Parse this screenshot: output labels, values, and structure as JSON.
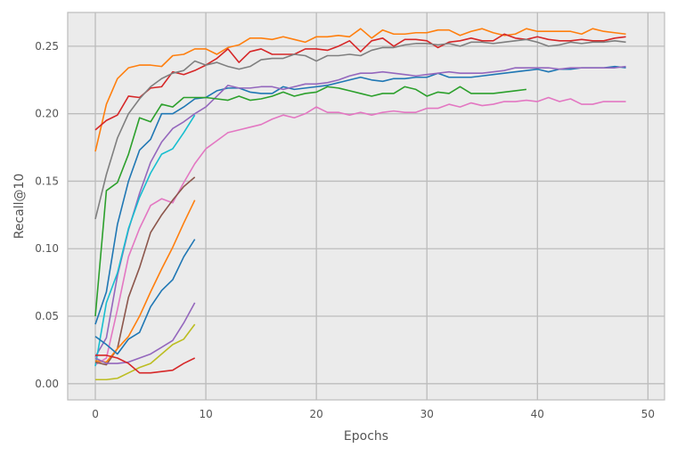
{
  "chart_data": {
    "type": "line",
    "title": "",
    "xlabel": "Epochs",
    "ylabel": "Recall@10",
    "xlim": [
      -2.5,
      51.5
    ],
    "ylim": [
      -0.012,
      0.275
    ],
    "xticks": [
      0,
      10,
      20,
      30,
      40,
      50
    ],
    "yticks": [
      0.0,
      0.05,
      0.1,
      0.15,
      0.2,
      0.25
    ],
    "xtick_labels": [
      "0",
      "10",
      "20",
      "30",
      "40",
      "50"
    ],
    "ytick_labels": [
      "0.00",
      "0.05",
      "0.10",
      "0.15",
      "0.20",
      "0.25"
    ],
    "grid": true,
    "background": "#ebebeb",
    "grid_color": "#bcbcbc",
    "series": [
      {
        "color": "#ff7f0e",
        "x_start": 0,
        "values": [
          0.172,
          0.207,
          0.226,
          0.234,
          0.236,
          0.236,
          0.235,
          0.243,
          0.244,
          0.248,
          0.248,
          0.244,
          0.249,
          0.251,
          0.256,
          0.256,
          0.255,
          0.257,
          0.255,
          0.253,
          0.257,
          0.257,
          0.258,
          0.257,
          0.263,
          0.256,
          0.262,
          0.259,
          0.259,
          0.26,
          0.26,
          0.262,
          0.262,
          0.258,
          0.261,
          0.263,
          0.26,
          0.258,
          0.259,
          0.263,
          0.261,
          0.261,
          0.261,
          0.261,
          0.259,
          0.263,
          0.261,
          0.26,
          0.259
        ]
      },
      {
        "color": "#d62728",
        "x_start": 0,
        "values": [
          0.188,
          0.195,
          0.199,
          0.213,
          0.212,
          0.219,
          0.22,
          0.231,
          0.229,
          0.232,
          0.236,
          0.241,
          0.248,
          0.238,
          0.246,
          0.248,
          0.244,
          0.244,
          0.244,
          0.248,
          0.248,
          0.247,
          0.25,
          0.254,
          0.246,
          0.254,
          0.256,
          0.25,
          0.255,
          0.255,
          0.254,
          0.249,
          0.253,
          0.254,
          0.256,
          0.254,
          0.254,
          0.259,
          0.256,
          0.255,
          0.257,
          0.255,
          0.254,
          0.254,
          0.255,
          0.254,
          0.254,
          0.256,
          0.257
        ]
      },
      {
        "color": "#7f7f7f",
        "x_start": 0,
        "values": [
          0.122,
          0.155,
          0.182,
          0.2,
          0.211,
          0.22,
          0.226,
          0.23,
          0.232,
          0.239,
          0.236,
          0.238,
          0.235,
          0.233,
          0.235,
          0.24,
          0.241,
          0.241,
          0.244,
          0.243,
          0.239,
          0.243,
          0.243,
          0.244,
          0.243,
          0.247,
          0.249,
          0.249,
          0.251,
          0.252,
          0.252,
          0.251,
          0.252,
          0.25,
          0.253,
          0.253,
          0.252,
          0.253,
          0.254,
          0.255,
          0.253,
          0.25,
          0.251,
          0.253,
          0.252,
          0.253,
          0.253,
          0.254,
          0.253
        ]
      },
      {
        "color": "#1f77b4",
        "x_start": 0,
        "values": [
          0.044,
          0.068,
          0.118,
          0.15,
          0.173,
          0.181,
          0.2,
          0.2,
          0.205,
          0.211,
          0.212,
          0.217,
          0.219,
          0.219,
          0.216,
          0.215,
          0.215,
          0.22,
          0.218,
          0.219,
          0.22,
          0.221,
          0.223,
          0.225,
          0.227,
          0.225,
          0.224,
          0.226,
          0.226,
          0.227,
          0.227,
          0.23,
          0.227,
          0.227,
          0.227,
          0.228,
          0.229,
          0.23,
          0.231,
          0.232,
          0.233,
          0.231,
          0.233,
          0.233,
          0.234,
          0.234,
          0.234,
          0.235,
          0.234
        ]
      },
      {
        "color": "#9467bd",
        "x_start": 0,
        "values": [
          0.02,
          0.034,
          0.08,
          0.114,
          0.141,
          0.164,
          0.179,
          0.189,
          0.194,
          0.2,
          0.205,
          0.213,
          0.221,
          0.219,
          0.219,
          0.22,
          0.22,
          0.218,
          0.22,
          0.222,
          0.222,
          0.223,
          0.225,
          0.228,
          0.23,
          0.23,
          0.231,
          0.23,
          0.229,
          0.228,
          0.229,
          0.23,
          0.231,
          0.23,
          0.23,
          0.23,
          0.231,
          0.232,
          0.234,
          0.234,
          0.234,
          0.234,
          0.233,
          0.234,
          0.234,
          0.234,
          0.234,
          0.234,
          0.235
        ]
      },
      {
        "color": "#2ca02c",
        "x_start": 0,
        "values": [
          0.05,
          0.143,
          0.149,
          0.17,
          0.197,
          0.194,
          0.207,
          0.205,
          0.212,
          0.212,
          0.212,
          0.211,
          0.21,
          0.213,
          0.21,
          0.211,
          0.213,
          0.216,
          0.213,
          0.215,
          0.216,
          0.22,
          0.219,
          0.217,
          0.215,
          0.213,
          0.215,
          0.215,
          0.22,
          0.218,
          0.213,
          0.216,
          0.215,
          0.22,
          0.215,
          0.215,
          0.215,
          0.216,
          0.217,
          0.218
        ]
      },
      {
        "color": "#e377c2",
        "x_start": 0,
        "values": [
          0.014,
          0.019,
          0.055,
          0.094,
          0.115,
          0.132,
          0.137,
          0.134,
          0.149,
          0.163,
          0.174,
          0.18,
          0.186,
          0.188,
          0.19,
          0.192,
          0.196,
          0.199,
          0.197,
          0.2,
          0.205,
          0.201,
          0.201,
          0.199,
          0.201,
          0.199,
          0.201,
          0.202,
          0.201,
          0.201,
          0.204,
          0.204,
          0.207,
          0.205,
          0.208,
          0.206,
          0.207,
          0.209,
          0.209,
          0.21,
          0.209,
          0.212,
          0.209,
          0.211,
          0.207,
          0.207,
          0.209,
          0.209,
          0.209
        ]
      },
      {
        "color": "#17becf",
        "x_start": 0,
        "values": [
          0.013,
          0.06,
          0.082,
          0.115,
          0.138,
          0.156,
          0.17,
          0.174,
          0.186,
          0.199
        ]
      },
      {
        "color": "#8c564b",
        "x_start": 0,
        "values": [
          0.016,
          0.014,
          0.026,
          0.064,
          0.086,
          0.112,
          0.125,
          0.136,
          0.146,
          0.153
        ]
      },
      {
        "color": "#ff7f0e",
        "x_start": 0,
        "values": [
          0.017,
          0.016,
          0.026,
          0.035,
          0.05,
          0.068,
          0.085,
          0.101,
          0.119,
          0.136
        ]
      },
      {
        "color": "#1f77b4",
        "x_start": 0,
        "values": [
          0.035,
          0.029,
          0.022,
          0.033,
          0.038,
          0.057,
          0.069,
          0.077,
          0.094,
          0.107
        ]
      },
      {
        "color": "#9467bd",
        "x_start": 0,
        "values": [
          0.019,
          0.015,
          0.015,
          0.016,
          0.019,
          0.022,
          0.027,
          0.032,
          0.045,
          0.06
        ]
      },
      {
        "color": "#bcbd22",
        "x_start": 0,
        "values": [
          0.003,
          0.003,
          0.004,
          0.008,
          0.012,
          0.015,
          0.022,
          0.029,
          0.033,
          0.044
        ]
      },
      {
        "color": "#d62728",
        "x_start": 0,
        "values": [
          0.021,
          0.021,
          0.019,
          0.015,
          0.008,
          0.008,
          0.009,
          0.01,
          0.015,
          0.019
        ]
      }
    ]
  }
}
